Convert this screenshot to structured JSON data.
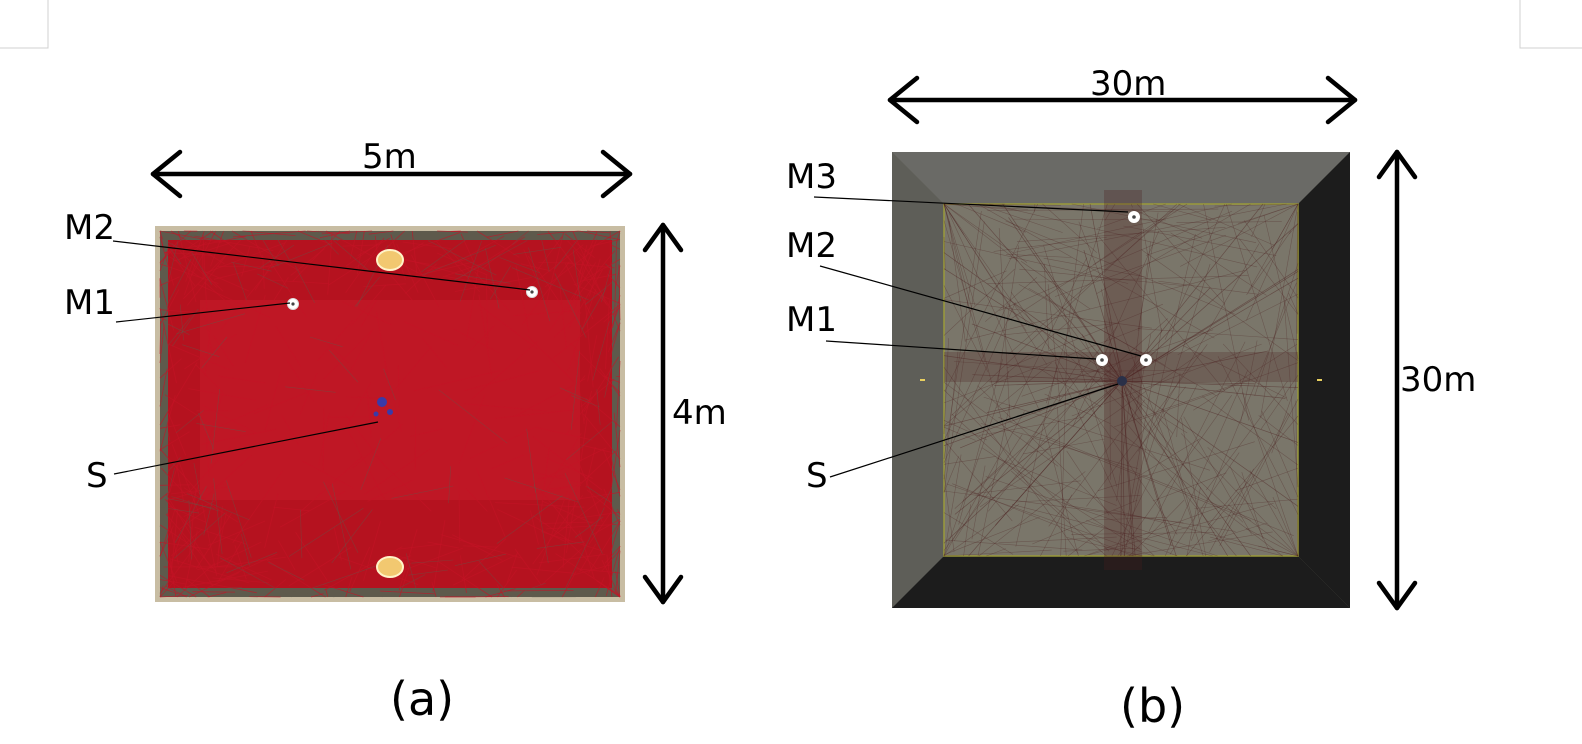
{
  "panel_a": {
    "caption": "(a)",
    "width_label": "5m",
    "height_label": "4m",
    "labels": {
      "m1": "M1",
      "m2": "M2",
      "s": "S"
    },
    "colors": {
      "floor": "#b5121f",
      "wall": "#5e5a4c",
      "frame": "#c8bda3",
      "lamp": "#f2c870"
    }
  },
  "panel_b": {
    "caption": "(b)",
    "width_label": "30m",
    "height_label": "30m",
    "labels": {
      "m1": "M1",
      "m2": "M2",
      "m3": "M3",
      "s": "S"
    },
    "colors": {
      "floor": "#7a766a",
      "wall_light": "#6c6a62",
      "wall_dark": "#1c1c1c",
      "ray": "#4a1e1e",
      "edge": "#9a9a3a"
    }
  }
}
